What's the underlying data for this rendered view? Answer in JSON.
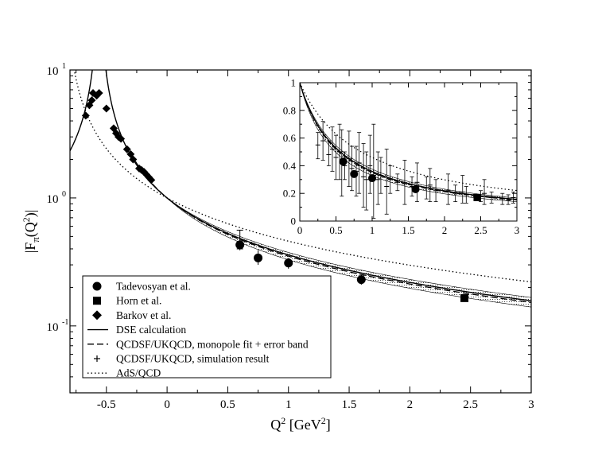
{
  "chart_data": [
    {
      "type": "scatter",
      "role": "main",
      "title": "",
      "xlabel": "Q",
      "xlabel_sup": "2",
      "xlabel_unit": " [GeV",
      "xlabel_unit_sup": "2",
      "xlabel_close": "]",
      "ylabel_main": "|F",
      "ylabel_sub": "π",
      "ylabel_paren": "(Q",
      "ylabel_sup": "2",
      "ylabel_close": ")|",
      "xlim": [
        -0.8,
        3.0
      ],
      "ylim": [
        0.03,
        10
      ],
      "yscale": "log",
      "x_ticks": [
        -0.5,
        0,
        0.5,
        1,
        1.5,
        2,
        2.5,
        3
      ],
      "x_tick_labels": [
        "-0.5",
        "0",
        "0.5",
        "1",
        "1.5",
        "2",
        "2.5",
        "3"
      ],
      "y_ticks": [
        {
          "value": 10,
          "base": "10",
          "exp": "1"
        },
        {
          "value": 1,
          "base": "10",
          "exp": "0"
        },
        {
          "value": 0.1,
          "base": "10",
          "exp": "-1"
        }
      ],
      "series": [
        {
          "name": "Tadevosyan et al.",
          "marker": "circle",
          "points": [
            {
              "x": 0.6,
              "y": 0.43,
              "lo": 0.39,
              "hi": 0.48
            },
            {
              "x": 0.75,
              "y": 0.34,
              "lo": 0.3,
              "hi": 0.39
            },
            {
              "x": 1.0,
              "y": 0.31,
              "lo": 0.28,
              "hi": 0.34
            },
            {
              "x": 1.6,
              "y": 0.23,
              "lo": 0.21,
              "hi": 0.25
            }
          ]
        },
        {
          "name": "Horn et al.",
          "marker": "square",
          "points": [
            {
              "x": 2.45,
              "y": 0.165,
              "lo": 0.155,
              "hi": 0.175
            }
          ]
        },
        {
          "name": "Barkov et al.",
          "marker": "diamond",
          "points": [
            {
              "x": -0.67,
              "y": 4.4
            },
            {
              "x": -0.64,
              "y": 5.3
            },
            {
              "x": -0.62,
              "y": 5.8
            },
            {
              "x": -0.61,
              "y": 6.6
            },
            {
              "x": -0.58,
              "y": 6.3
            },
            {
              "x": -0.56,
              "y": 6.6
            },
            {
              "x": -0.5,
              "y": 5.0
            },
            {
              "x": -0.44,
              "y": 3.5
            },
            {
              "x": -0.42,
              "y": 3.2
            },
            {
              "x": -0.4,
              "y": 3.0
            },
            {
              "x": -0.38,
              "y": 2.9
            },
            {
              "x": -0.33,
              "y": 2.4
            },
            {
              "x": -0.3,
              "y": 2.2
            },
            {
              "x": -0.28,
              "y": 2.0
            },
            {
              "x": -0.23,
              "y": 1.7
            },
            {
              "x": -0.21,
              "y": 1.65
            },
            {
              "x": -0.19,
              "y": 1.6
            },
            {
              "x": -0.17,
              "y": 1.52
            },
            {
              "x": -0.15,
              "y": 1.45
            },
            {
              "x": -0.13,
              "y": 1.38
            }
          ]
        },
        {
          "name": "DSE calculation",
          "style": "solid",
          "model": "vmd-pole",
          "mass_squared": 0.56
        },
        {
          "name": "QCDSF/UKQCD, monopole fit + error band",
          "style": "dashed",
          "model": "monopole",
          "mass_squared": 0.54,
          "band_mass_squared": [
            0.49,
            0.6
          ]
        },
        {
          "name": "QCDSF/UKQCD, simulation result",
          "marker": "plus",
          "points": [
            {
              "x": 0.6,
              "y": 0.47,
              "lo": 0.4,
              "hi": 0.56
            }
          ]
        },
        {
          "name": "AdS/QCD",
          "style": "dotted",
          "model": "monopole",
          "mass_squared": 0.85
        }
      ],
      "legend": "bottom-left"
    },
    {
      "type": "scatter",
      "role": "inset",
      "xlim": [
        0,
        3
      ],
      "ylim": [
        0,
        1
      ],
      "x_ticks": [
        0,
        0.5,
        1,
        1.5,
        2,
        2.5,
        3
      ],
      "x_tick_labels": [
        "0",
        "0.5",
        "1",
        "1.5",
        "2",
        "2.5",
        "3"
      ],
      "y_ticks": [
        0,
        0.2,
        0.4,
        0.6,
        0.8,
        1
      ],
      "y_tick_labels": [
        "0",
        "0.2",
        "0.4",
        "0.6",
        "0.8",
        "1"
      ],
      "circle_points": [
        {
          "x": 0.6,
          "y": 0.43
        },
        {
          "x": 0.75,
          "y": 0.34
        },
        {
          "x": 1.0,
          "y": 0.31
        },
        {
          "x": 1.6,
          "y": 0.23
        }
      ],
      "square_points": [
        {
          "x": 2.45,
          "y": 0.17
        }
      ],
      "simulation_points": [
        {
          "x": 0.25,
          "y": 0.55,
          "lo": 0.45,
          "hi": 0.64
        },
        {
          "x": 0.32,
          "y": 0.58,
          "lo": 0.44,
          "hi": 0.72
        },
        {
          "x": 0.4,
          "y": 0.48,
          "lo": 0.4,
          "hi": 0.58
        },
        {
          "x": 0.45,
          "y": 0.52,
          "lo": 0.36,
          "hi": 0.68
        },
        {
          "x": 0.5,
          "y": 0.46,
          "lo": 0.3,
          "hi": 0.62
        },
        {
          "x": 0.55,
          "y": 0.5,
          "lo": 0.3,
          "hi": 0.7
        },
        {
          "x": 0.58,
          "y": 0.42,
          "lo": 0.18,
          "hi": 0.66
        },
        {
          "x": 0.62,
          "y": 0.4,
          "lo": 0.3,
          "hi": 0.5
        },
        {
          "x": 0.68,
          "y": 0.45,
          "lo": 0.25,
          "hi": 0.65
        },
        {
          "x": 0.72,
          "y": 0.38,
          "lo": 0.22,
          "hi": 0.54
        },
        {
          "x": 0.78,
          "y": 0.36,
          "lo": 0.18,
          "hi": 0.54
        },
        {
          "x": 0.82,
          "y": 0.42,
          "lo": 0.2,
          "hi": 0.64
        },
        {
          "x": 0.88,
          "y": 0.32,
          "lo": 0.1,
          "hi": 0.56
        },
        {
          "x": 0.92,
          "y": 0.3,
          "lo": 0.08,
          "hi": 0.5
        },
        {
          "x": 0.97,
          "y": 0.4,
          "lo": 0.2,
          "hi": 0.62
        },
        {
          "x": 1.02,
          "y": 0.33,
          "lo": 0.02,
          "hi": 0.7
        },
        {
          "x": 1.08,
          "y": 0.3,
          "lo": 0.12,
          "hi": 0.5
        },
        {
          "x": 1.12,
          "y": 0.33,
          "lo": 0.2,
          "hi": 0.46
        },
        {
          "x": 1.2,
          "y": 0.25,
          "lo": 0.05,
          "hi": 0.52
        },
        {
          "x": 1.25,
          "y": 0.3,
          "lo": 0.2,
          "hi": 0.4
        },
        {
          "x": 1.35,
          "y": 0.28,
          "lo": 0.22,
          "hi": 0.34
        },
        {
          "x": 1.45,
          "y": 0.27,
          "lo": 0.12,
          "hi": 0.44
        },
        {
          "x": 1.55,
          "y": 0.25,
          "lo": 0.18,
          "hi": 0.32
        },
        {
          "x": 1.62,
          "y": 0.28,
          "lo": 0.14,
          "hi": 0.42
        },
        {
          "x": 1.75,
          "y": 0.24,
          "lo": 0.16,
          "hi": 0.32
        },
        {
          "x": 1.8,
          "y": 0.26,
          "lo": 0.14,
          "hi": 0.38
        },
        {
          "x": 1.88,
          "y": 0.22,
          "lo": 0.14,
          "hi": 0.3
        },
        {
          "x": 2.05,
          "y": 0.22,
          "lo": 0.12,
          "hi": 0.34
        },
        {
          "x": 2.15,
          "y": 0.2,
          "lo": 0.14,
          "hi": 0.26
        },
        {
          "x": 2.25,
          "y": 0.21,
          "lo": 0.13,
          "hi": 0.33
        },
        {
          "x": 2.3,
          "y": 0.19,
          "lo": 0.13,
          "hi": 0.25
        },
        {
          "x": 2.5,
          "y": 0.18,
          "lo": 0.14,
          "hi": 0.22
        },
        {
          "x": 2.55,
          "y": 0.2,
          "lo": 0.12,
          "hi": 0.3
        },
        {
          "x": 2.65,
          "y": 0.17,
          "lo": 0.13,
          "hi": 0.21
        },
        {
          "x": 2.8,
          "y": 0.16,
          "lo": 0.12,
          "hi": 0.2
        },
        {
          "x": 2.88,
          "y": 0.15,
          "lo": 0.12,
          "hi": 0.19
        },
        {
          "x": 2.95,
          "y": 0.17,
          "lo": 0.13,
          "hi": 0.21
        }
      ]
    }
  ]
}
